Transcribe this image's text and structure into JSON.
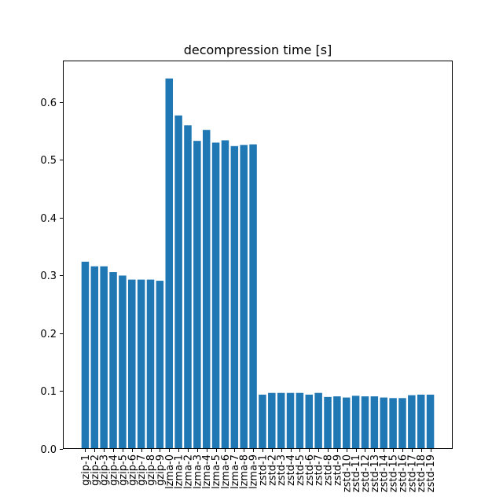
{
  "chart_data": {
    "type": "bar",
    "title": "decompression time [s]",
    "xlabel": "",
    "ylabel": "",
    "ylim": [
      0,
      0.672
    ],
    "yticks": [
      "0.0",
      "0.1",
      "0.2",
      "0.3",
      "0.4",
      "0.5",
      "0.6"
    ],
    "bar_color": "#1f77b4",
    "grid": false,
    "categories": [
      "gzip-1",
      "gzip-2",
      "gzip-3",
      "gzip-4",
      "gzip-5",
      "gzip-6",
      "gzip-7",
      "gzip-8",
      "gzip-9",
      "lzma-0",
      "lzma-1",
      "lzma-2",
      "lzma-3",
      "lzma-4",
      "lzma-5",
      "lzma-6",
      "lzma-7",
      "lzma-8",
      "lzma-9",
      "zstd-1",
      "zstd-2",
      "zstd-3",
      "zstd-4",
      "zstd-5",
      "zstd-6",
      "zstd-7",
      "zstd-8",
      "zstd-9",
      "zstd-10",
      "zstd-11",
      "zstd-12",
      "zstd-13",
      "zstd-14",
      "zstd-15",
      "zstd-16",
      "zstd-17",
      "zstd-18",
      "zstd-19"
    ],
    "values": [
      0.324,
      0.316,
      0.316,
      0.306,
      0.3,
      0.293,
      0.293,
      0.293,
      0.291,
      0.641,
      0.577,
      0.56,
      0.533,
      0.552,
      0.53,
      0.534,
      0.524,
      0.526,
      0.527,
      0.094,
      0.097,
      0.097,
      0.097,
      0.097,
      0.094,
      0.097,
      0.09,
      0.091,
      0.089,
      0.092,
      0.091,
      0.091,
      0.089,
      0.088,
      0.088,
      0.093,
      0.094,
      0.094
    ]
  }
}
